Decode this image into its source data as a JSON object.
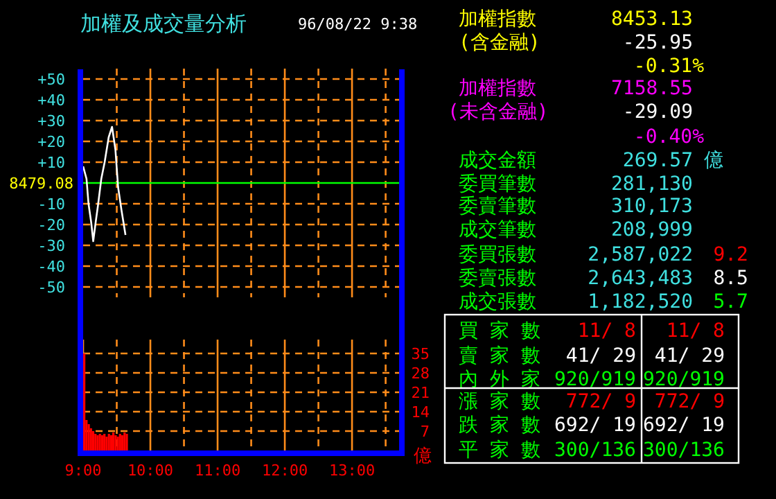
{
  "chart_data": [
    {
      "type": "line",
      "title": "加權及成交量分析",
      "subtitle": "96/08/22 9:38",
      "x": [
        9.0,
        9.05,
        9.08,
        9.12,
        9.15,
        9.19,
        9.22,
        9.27,
        9.32,
        9.38,
        9.43,
        9.48,
        9.52,
        9.57,
        9.63
      ],
      "series": [
        {
          "color": "#ffffff",
          "values": [
            8,
            2,
            -10,
            -19,
            -28,
            -18,
            -11,
            2,
            10,
            22,
            27,
            16,
            -2,
            -13,
            -25
          ]
        }
      ],
      "xlim": [
        9,
        13.7
      ],
      "xticks": [
        {
          "value": 9.5,
          "label": null
        },
        {
          "value": 10,
          "label": null
        },
        {
          "value": 10.5,
          "label": null
        },
        {
          "value": 11,
          "label": null
        },
        {
          "value": 11.5,
          "label": null
        },
        {
          "value": 12,
          "label": null
        },
        {
          "value": 12.5,
          "label": null
        },
        {
          "value": 13,
          "label": null
        },
        {
          "value": 13.5,
          "label": null
        }
      ],
      "ylim": [
        -55,
        55
      ],
      "yticks": [
        {
          "value": 50,
          "label": "+50"
        },
        {
          "value": 40,
          "label": "+40"
        },
        {
          "value": 30,
          "label": "+30"
        },
        {
          "value": 20,
          "label": "+20"
        },
        {
          "value": 10,
          "label": "+10"
        },
        {
          "value": -10,
          "label": "-10"
        },
        {
          "value": -20,
          "label": "-20"
        },
        {
          "value": -30,
          "label": "-30"
        },
        {
          "value": -40,
          "label": "-40"
        },
        {
          "value": -50,
          "label": "-50"
        }
      ],
      "ref_lines": [
        {
          "axis": "y",
          "value": 0,
          "color": "#00ff00"
        }
      ],
      "annotations": [
        "8479.08"
      ],
      "grid": true,
      "tick_labels": "y"
    },
    {
      "type": "bar",
      "x": [
        9.0,
        9.033,
        9.067,
        9.1,
        9.133,
        9.167,
        9.2,
        9.233,
        9.267,
        9.3,
        9.333,
        9.367,
        9.4,
        9.433,
        9.467,
        9.5,
        9.533,
        9.567,
        9.6,
        9.633
      ],
      "values": [
        35,
        11,
        9.5,
        8,
        7,
        6,
        5.5,
        6,
        5.5,
        6,
        5,
        6,
        5.5,
        6.5,
        5.5,
        5,
        6,
        5.5,
        6.5,
        6
      ],
      "color": "#ff0000",
      "xlim": [
        9,
        13.7
      ],
      "xticks": [
        {
          "value": 9,
          "label": "9:00"
        },
        {
          "value": 9.5,
          "label": null
        },
        {
          "value": 10,
          "label": "10:00"
        },
        {
          "value": 10.5,
          "label": null
        },
        {
          "value": 11,
          "label": "11:00"
        },
        {
          "value": 11.5,
          "label": null
        },
        {
          "value": 12,
          "label": "12:00"
        },
        {
          "value": 12.5,
          "label": null
        },
        {
          "value": 13,
          "label": "13:00"
        },
        {
          "value": 13.5,
          "label": null
        }
      ],
      "ylim": [
        0,
        40
      ],
      "yticks": [
        7,
        14,
        21,
        28,
        35
      ],
      "ylabel": "億",
      "grid": true
    },
    {
      "type": "other",
      "annotations": [
        "加權指數",
        "8453.13",
        "(含金融)",
        "-25.95",
        "-0.31%",
        "加權指數",
        "7158.55",
        "(未含金融)",
        "-29.09",
        "-0.40%",
        "成交金額",
        "269.57",
        "億",
        "委買筆數",
        "281,130",
        "委賣筆數",
        "310,173",
        "成交筆數",
        "208,999",
        "委買張數",
        "2,587,022",
        "9.2",
        "委賣張數",
        "2,643,483",
        "8.5",
        "成交張數",
        "1,182,520",
        "5.7",
        "買 家 數",
        "11/  8",
        "11/  8",
        "賣 家 數",
        "41/ 29",
        "41/ 29",
        "內 外 家",
        "920/919",
        "920/919",
        "漲 家 數",
        "772/  9",
        "772/  9",
        "跌 家 數",
        "692/ 19",
        "692/ 19",
        "平 家 數",
        "300/136",
        "300/136"
      ]
    }
  ]
}
